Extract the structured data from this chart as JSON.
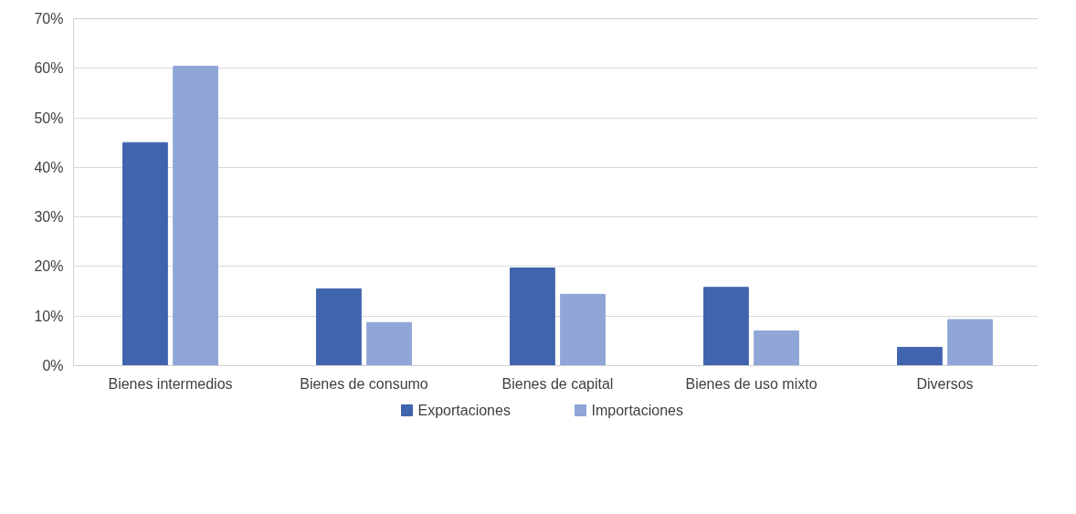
{
  "chart_data": {
    "type": "bar",
    "categories": [
      "Bienes intermedios",
      "Bienes de consumo",
      "Bienes de capital",
      "Bienes de uso mixto",
      "Diversos"
    ],
    "series": [
      {
        "name": "Exportaciones",
        "color": "#4064ad",
        "values": [
          45.0,
          15.5,
          19.7,
          15.8,
          3.7
        ]
      },
      {
        "name": "Importaciones",
        "color": "#8fa6d6",
        "values": [
          60.4,
          8.7,
          14.4,
          7.0,
          9.3
        ]
      }
    ],
    "ylim": [
      0,
      70
    ],
    "yticks": [
      {
        "value": 0,
        "label": "0%"
      },
      {
        "value": 10,
        "label": "10%"
      },
      {
        "value": 20,
        "label": "20%"
      },
      {
        "value": 30,
        "label": "30%"
      },
      {
        "value": 40,
        "label": "40%"
      },
      {
        "value": 50,
        "label": "50%"
      },
      {
        "value": 60,
        "label": "60%"
      },
      {
        "value": 70,
        "label": "70%"
      }
    ],
    "grid": "y",
    "legend": "bottom"
  }
}
